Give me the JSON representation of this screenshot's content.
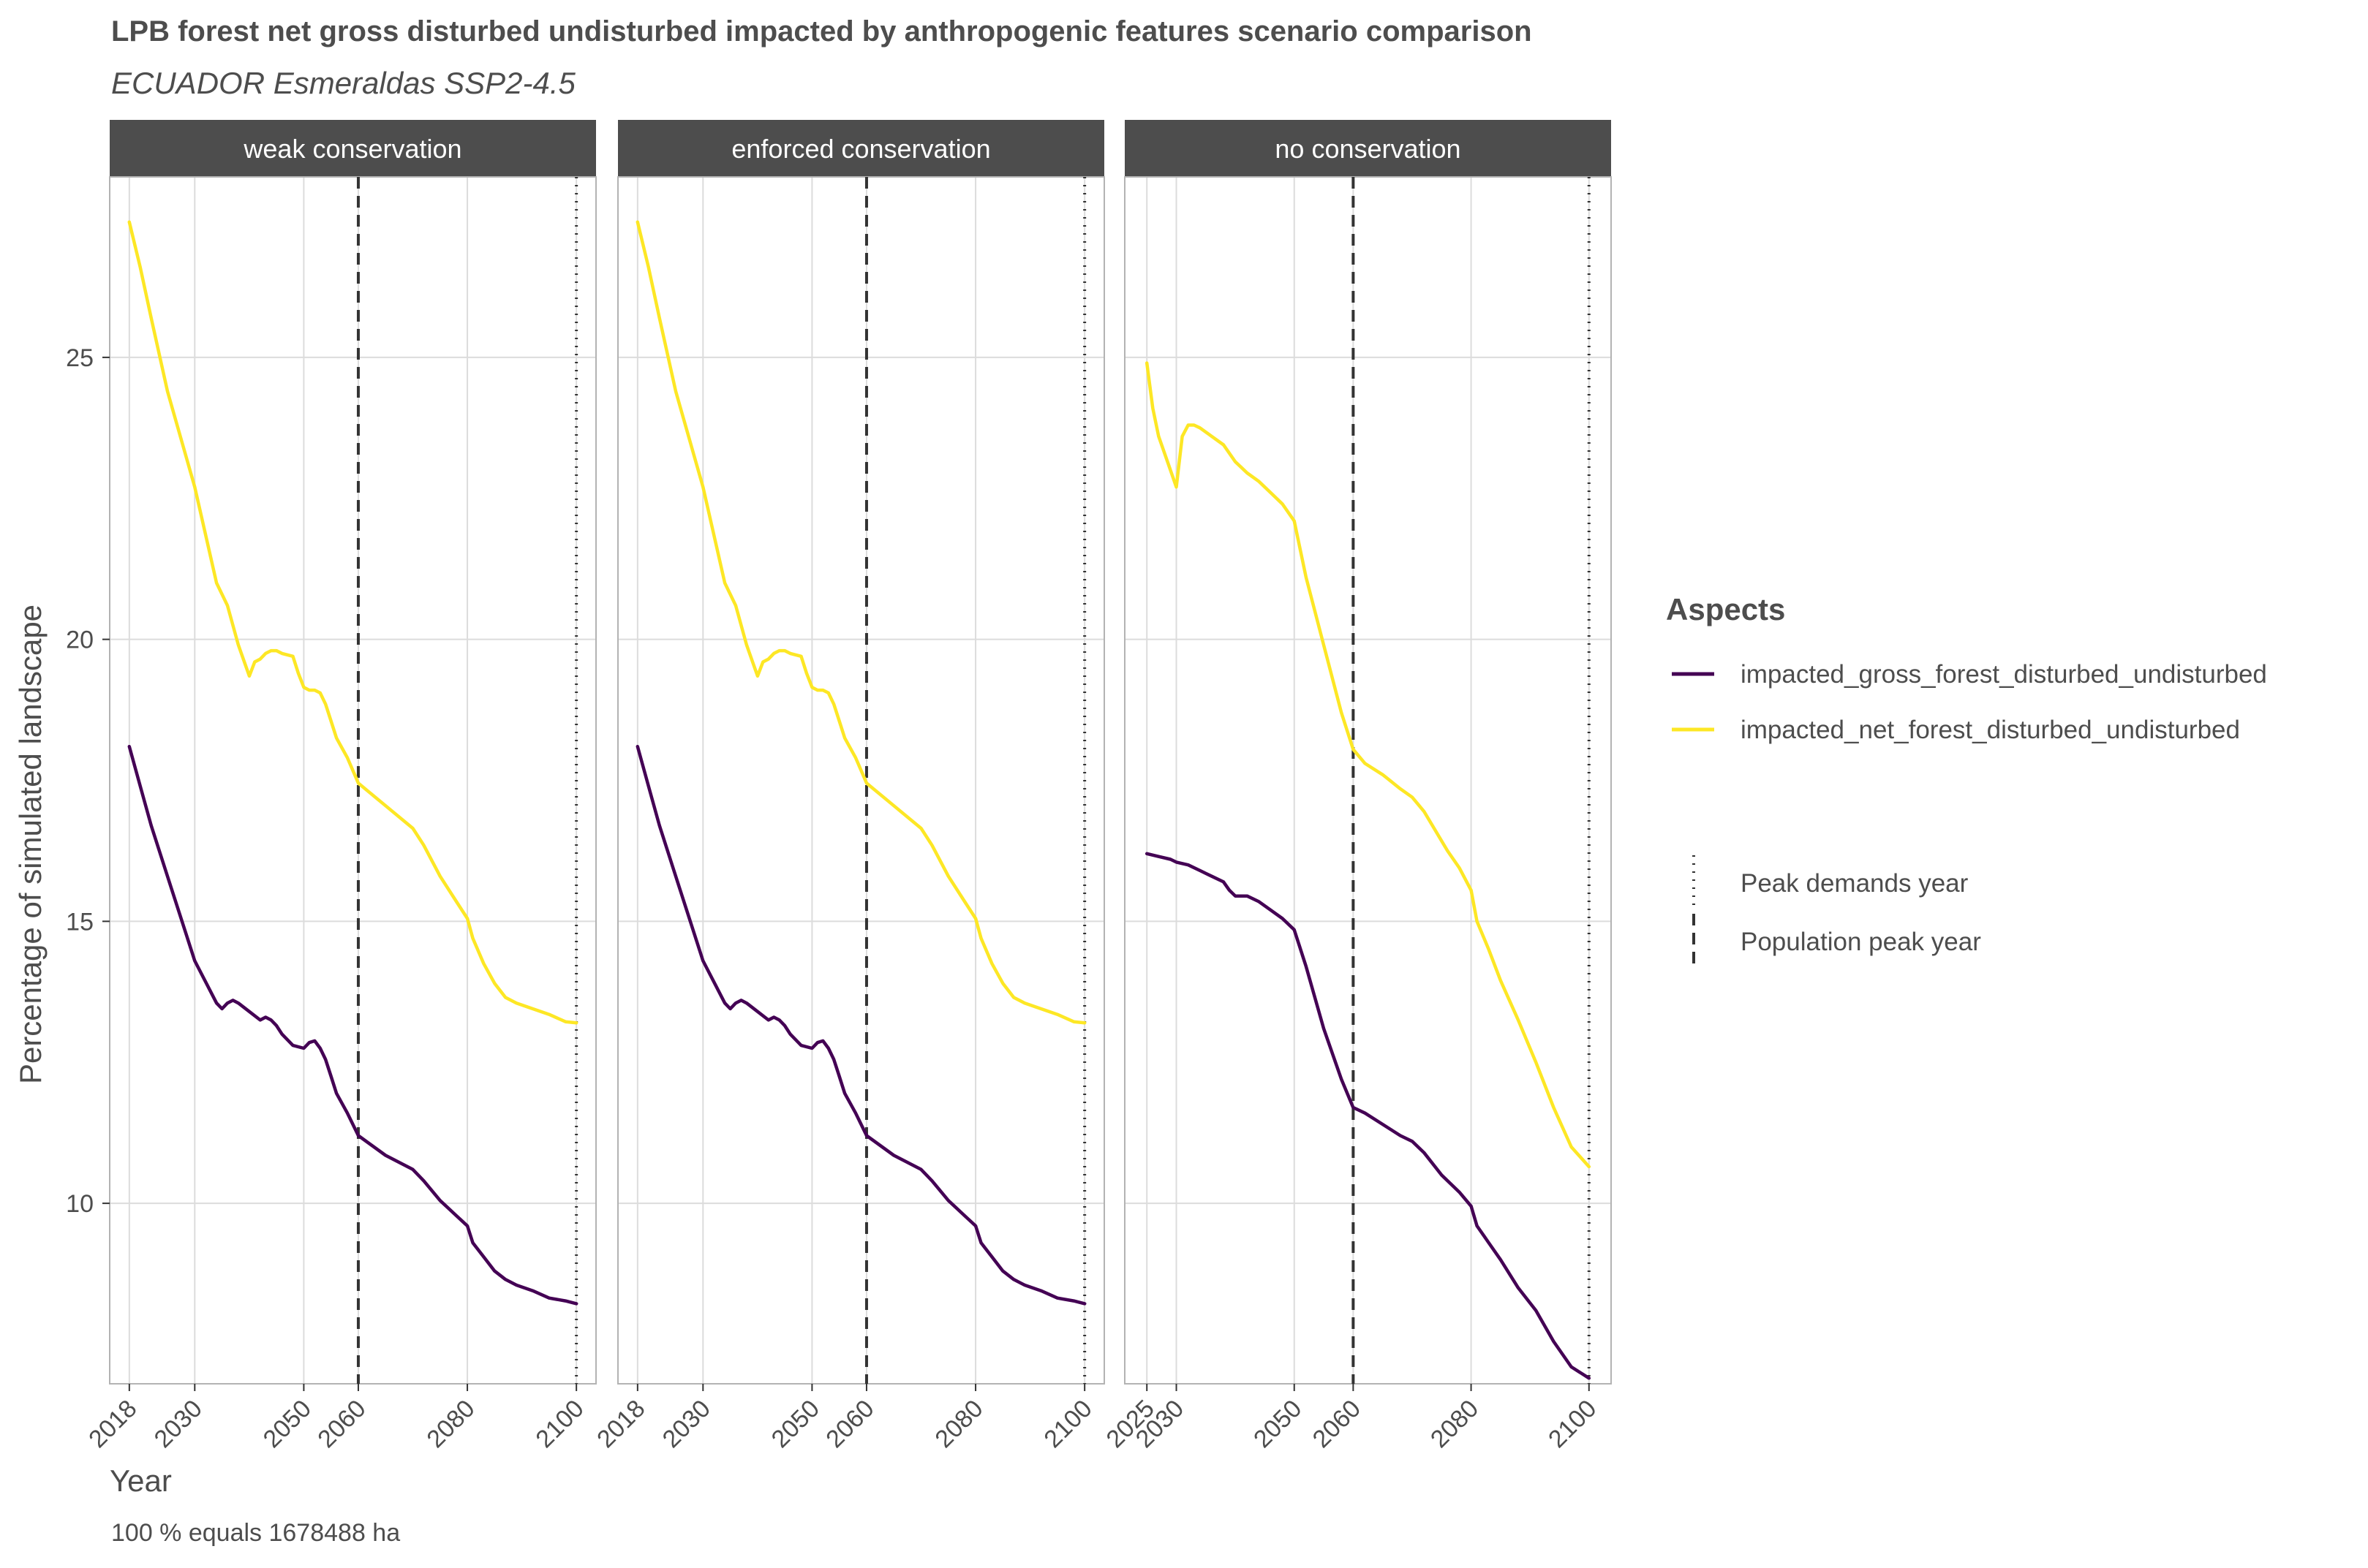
{
  "title": "LPB forest net gross disturbed undisturbed impacted by anthropogenic features scenario comparison",
  "subtitle": "ECUADOR Esmeraldas SSP2-4.5",
  "caption": "100 % equals 1678488 ha",
  "colors": {
    "gross": "#440154",
    "net": "#fde725",
    "strip_bg": "#4d4d4d",
    "strip_text": "#ffffff",
    "grid": "#dcdcdc",
    "panel_border": "#b3b3b3",
    "vline": "#333333"
  },
  "chart_data": {
    "type": "line",
    "xlabel": "Year",
    "ylabel": "Percentage of simulated landscape",
    "ylim": [
      6.8,
      28.2
    ],
    "y_ticks": [
      10,
      15,
      20,
      25
    ],
    "y_tick_labels": [
      "10",
      "15",
      "20",
      "25"
    ],
    "grid": true,
    "legend_position": "right",
    "legend": {
      "title": "Aspects",
      "series_labels": [
        "impacted_gross_forest_disturbed_undisturbed",
        "impacted_net_forest_disturbed_undisturbed"
      ],
      "vline_labels": [
        "Peak demands year",
        "Population peak year"
      ]
    },
    "reference_lines": [
      {
        "name": "Population peak year",
        "x": 2060,
        "style": "dashed"
      },
      {
        "name": "Peak demands year",
        "x": 2100,
        "style": "dotted"
      }
    ],
    "panels": [
      {
        "facet": "weak conservation",
        "xlim": [
          2014.4,
          2103.6
        ],
        "x_ticks": [
          2018,
          2030,
          2050,
          2060,
          2080,
          2100
        ],
        "x_tick_labels": [
          "2018",
          "2030",
          "2050",
          "2060",
          "2080",
          "2100"
        ],
        "series": [
          {
            "name": "impacted_gross_forest_disturbed_undisturbed",
            "x": [
              2018,
              2020,
              2022,
              2025,
              2030,
              2034,
              2035,
              2036,
              2037,
              2038,
              2040,
              2042,
              2043,
              2044,
              2045,
              2046,
              2048,
              2050,
              2051,
              2052,
              2053,
              2054,
              2055,
              2056,
              2058,
              2060,
              2065,
              2070,
              2072,
              2075,
              2078,
              2080,
              2081,
              2083,
              2085,
              2087,
              2089,
              2092,
              2095,
              2098,
              2100
            ],
            "y": [
              18.1,
              17.4,
              16.7,
              15.8,
              14.3,
              13.55,
              13.45,
              13.55,
              13.6,
              13.55,
              13.4,
              13.25,
              13.3,
              13.25,
              13.15,
              13.0,
              12.8,
              12.75,
              12.85,
              12.88,
              12.75,
              12.55,
              12.25,
              11.95,
              11.6,
              11.2,
              10.85,
              10.6,
              10.4,
              10.05,
              9.78,
              9.6,
              9.3,
              9.05,
              8.8,
              8.65,
              8.55,
              8.45,
              8.32,
              8.27,
              8.22
            ]
          },
          {
            "name": "impacted_net_forest_disturbed_undisturbed",
            "x": [
              2018,
              2020,
              2022,
              2025,
              2030,
              2034,
              2036,
              2038,
              2040,
              2041,
              2042,
              2043,
              2044,
              2045,
              2046,
              2048,
              2049,
              2050,
              2051,
              2052,
              2053,
              2054,
              2055,
              2056,
              2058,
              2060,
              2065,
              2070,
              2072,
              2075,
              2078,
              2080,
              2081,
              2083,
              2085,
              2087,
              2089,
              2092,
              2095,
              2098,
              2100
            ],
            "y": [
              27.4,
              26.6,
              25.7,
              24.4,
              22.7,
              21.0,
              20.6,
              19.9,
              19.35,
              19.6,
              19.65,
              19.75,
              19.8,
              19.8,
              19.75,
              19.7,
              19.4,
              19.15,
              19.1,
              19.1,
              19.05,
              18.85,
              18.55,
              18.25,
              17.9,
              17.45,
              17.05,
              16.65,
              16.35,
              15.8,
              15.35,
              15.05,
              14.7,
              14.25,
              13.9,
              13.65,
              13.55,
              13.45,
              13.35,
              13.22,
              13.2
            ]
          }
        ]
      },
      {
        "facet": "enforced conservation",
        "xlim": [
          2014.4,
          2103.6
        ],
        "x_ticks": [
          2018,
          2030,
          2050,
          2060,
          2080,
          2100
        ],
        "x_tick_labels": [
          "2018",
          "2030",
          "2050",
          "2060",
          "2080",
          "2100"
        ],
        "series": [
          {
            "name": "impacted_gross_forest_disturbed_undisturbed",
            "x": [
              2018,
              2020,
              2022,
              2025,
              2030,
              2034,
              2035,
              2036,
              2037,
              2038,
              2040,
              2042,
              2043,
              2044,
              2045,
              2046,
              2048,
              2050,
              2051,
              2052,
              2053,
              2054,
              2055,
              2056,
              2058,
              2060,
              2065,
              2070,
              2072,
              2075,
              2078,
              2080,
              2081,
              2083,
              2085,
              2087,
              2089,
              2092,
              2095,
              2098,
              2100
            ],
            "y": [
              18.1,
              17.4,
              16.7,
              15.8,
              14.3,
              13.55,
              13.45,
              13.55,
              13.6,
              13.55,
              13.4,
              13.25,
              13.3,
              13.25,
              13.15,
              13.0,
              12.8,
              12.75,
              12.85,
              12.88,
              12.75,
              12.55,
              12.25,
              11.95,
              11.6,
              11.2,
              10.85,
              10.6,
              10.4,
              10.05,
              9.78,
              9.6,
              9.3,
              9.05,
              8.8,
              8.65,
              8.55,
              8.45,
              8.32,
              8.27,
              8.22
            ]
          },
          {
            "name": "impacted_net_forest_disturbed_undisturbed",
            "x": [
              2018,
              2020,
              2022,
              2025,
              2030,
              2034,
              2036,
              2038,
              2040,
              2041,
              2042,
              2043,
              2044,
              2045,
              2046,
              2048,
              2049,
              2050,
              2051,
              2052,
              2053,
              2054,
              2055,
              2056,
              2058,
              2060,
              2065,
              2070,
              2072,
              2075,
              2078,
              2080,
              2081,
              2083,
              2085,
              2087,
              2089,
              2092,
              2095,
              2098,
              2100
            ],
            "y": [
              27.4,
              26.6,
              25.7,
              24.4,
              22.7,
              21.0,
              20.6,
              19.9,
              19.35,
              19.6,
              19.65,
              19.75,
              19.8,
              19.8,
              19.75,
              19.7,
              19.4,
              19.15,
              19.1,
              19.1,
              19.05,
              18.85,
              18.55,
              18.25,
              17.9,
              17.45,
              17.05,
              16.65,
              16.35,
              15.8,
              15.35,
              15.05,
              14.7,
              14.25,
              13.9,
              13.65,
              13.55,
              13.45,
              13.35,
              13.22,
              13.2
            ]
          }
        ]
      },
      {
        "facet": "no conservation",
        "xlim": [
          2021.25,
          2103.75
        ],
        "x_ticks": [
          2025,
          2030,
          2050,
          2060,
          2080,
          2100
        ],
        "x_tick_labels": [
          "2025",
          "2030",
          "2050",
          "2060",
          "2080",
          "2100"
        ],
        "series": [
          {
            "name": "impacted_gross_forest_disturbed_undisturbed",
            "x": [
              2025,
              2027,
              2029,
              2030,
              2032,
              2034,
              2036,
              2038,
              2039,
              2040,
              2041,
              2042,
              2044,
              2046,
              2048,
              2050,
              2052,
              2055,
              2058,
              2060,
              2062,
              2065,
              2068,
              2070,
              2072,
              2075,
              2078,
              2080,
              2081,
              2083,
              2085,
              2088,
              2091,
              2094,
              2097,
              2100
            ],
            "y": [
              16.2,
              16.15,
              16.1,
              16.05,
              16.0,
              15.9,
              15.8,
              15.7,
              15.55,
              15.45,
              15.45,
              15.45,
              15.35,
              15.2,
              15.05,
              14.85,
              14.2,
              13.1,
              12.2,
              11.7,
              11.6,
              11.4,
              11.2,
              11.1,
              10.9,
              10.5,
              10.2,
              9.95,
              9.6,
              9.3,
              9.0,
              8.5,
              8.1,
              7.55,
              7.1,
              6.9
            ]
          },
          {
            "name": "impacted_net_forest_disturbed_undisturbed",
            "x": [
              2025,
              2026,
              2027,
              2029,
              2030,
              2031,
              2032,
              2033,
              2034,
              2036,
              2038,
              2040,
              2041,
              2042,
              2044,
              2046,
              2048,
              2050,
              2052,
              2055,
              2058,
              2060,
              2062,
              2065,
              2068,
              2070,
              2072,
              2074,
              2076,
              2078,
              2080,
              2081,
              2083,
              2085,
              2088,
              2091,
              2094,
              2097,
              2100
            ],
            "y": [
              24.9,
              24.1,
              23.6,
              23.0,
              22.7,
              23.6,
              23.8,
              23.8,
              23.75,
              23.6,
              23.45,
              23.15,
              23.05,
              22.95,
              22.8,
              22.6,
              22.4,
              22.1,
              21.1,
              19.9,
              18.7,
              18.05,
              17.8,
              17.6,
              17.35,
              17.2,
              16.95,
              16.6,
              16.25,
              15.95,
              15.55,
              15.0,
              14.5,
              13.95,
              13.25,
              12.5,
              11.7,
              11.0,
              10.65
            ]
          }
        ]
      }
    ]
  }
}
